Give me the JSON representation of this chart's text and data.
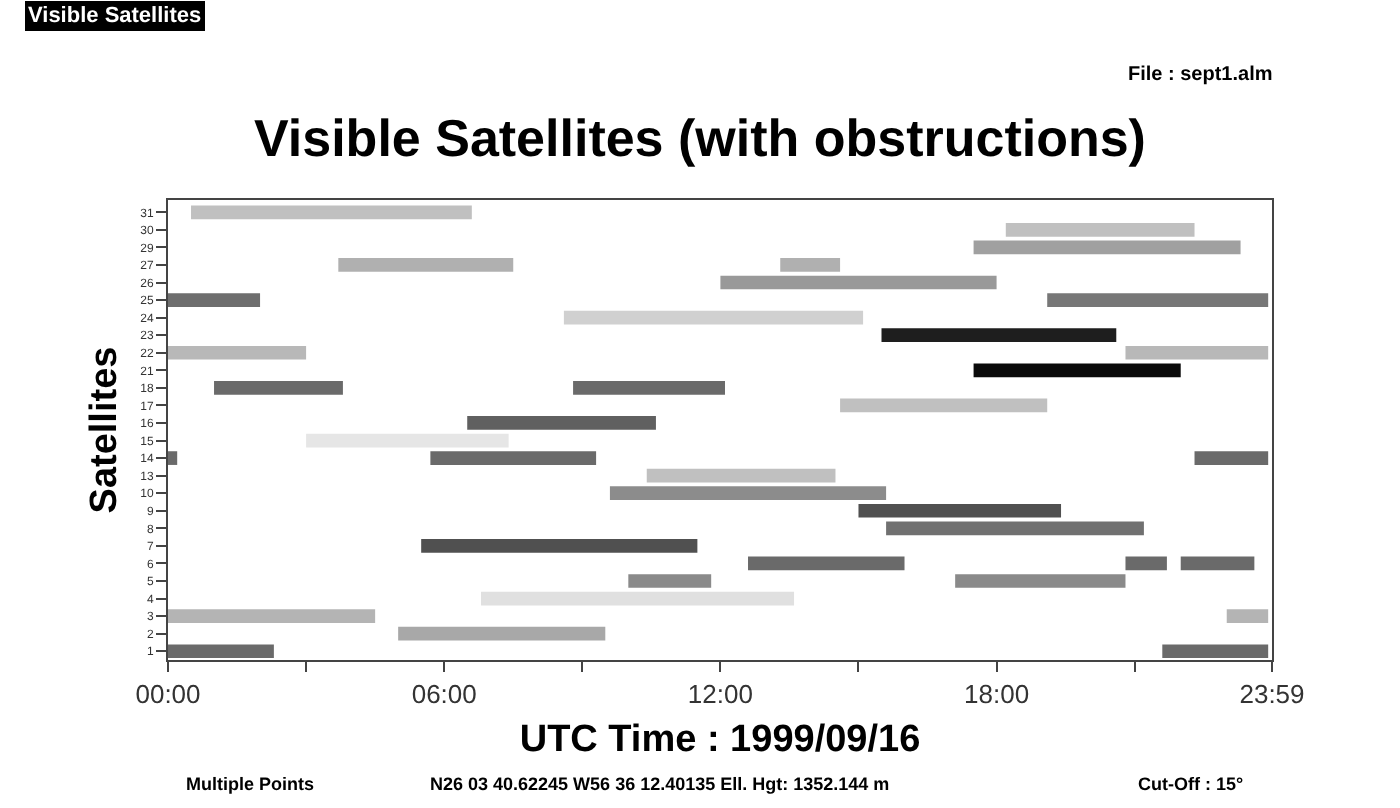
{
  "chart_data": {
    "type": "bar",
    "orientation": "horizontal",
    "title": "Visible Satellites (with obstructions)",
    "xlabel": "UTC Time : 1999/09/16",
    "ylabel": "Satellites",
    "annotations": [
      "Visible Satellites",
      "File : sept1.alm",
      "Multiple Points",
      "N26 03 40.62245 W56 36 12.40135 Ell. Hgt: 1352.144 m",
      "Cut-Off : 15°"
    ],
    "categories": [
      "31",
      "30",
      "29",
      "27",
      "26",
      "25",
      "24",
      "23",
      "22",
      "21",
      "18",
      "17",
      "16",
      "15",
      "14",
      "13",
      "10",
      "9",
      "8",
      "7",
      "6",
      "5",
      "4",
      "3",
      "2",
      "1"
    ],
    "series": [
      {
        "base": [
          0.5,
          18.2,
          17.5,
          3.7,
          12.0,
          0.0,
          8.6,
          15.5,
          0.0,
          17.5,
          1.0,
          14.6,
          6.5,
          3.0,
          0.0,
          10.4,
          9.6,
          15.0,
          15.6,
          5.5,
          12.6,
          10.0,
          6.8,
          0.0,
          5.0,
          0.0
        ],
        "values": [
          6.1,
          4.1,
          5.8,
          3.8,
          6.0,
          2.0,
          6.5,
          5.1,
          3.0,
          4.5,
          2.8,
          4.5,
          4.1,
          4.4,
          0.2,
          4.1,
          6.0,
          4.4,
          5.6,
          6.0,
          3.4,
          1.8,
          6.8,
          4.5,
          4.5,
          2.3
        ],
        "colors": [
          "#c0c0c0",
          "#c0c0c0",
          "#a0a0a0",
          "#b0b0b0",
          "#999999",
          "#6e6e6e",
          "#d0d0d0",
          "#1e1e1e",
          "#b8b8b8",
          "#0a0a0a",
          "#6a6a6a",
          "#c0c0c0",
          "#606060",
          "#e6e6e6",
          "#6a6a6a",
          "#c0c0c0",
          "#8c8c8c",
          "#505050",
          "#707070",
          "#505050",
          "#6a6a6a",
          "#8a8a8a",
          "#e0e0e0",
          "#b4b4b4",
          "#a8a8a8",
          "#6a6a6a"
        ]
      },
      {
        "base": [
          null,
          null,
          null,
          13.3,
          null,
          19.1,
          null,
          null,
          20.8,
          null,
          8.8,
          null,
          null,
          null,
          5.7,
          null,
          null,
          null,
          null,
          null,
          20.8,
          17.1,
          null,
          23.0,
          null,
          21.6
        ],
        "values": [
          null,
          null,
          null,
          1.3,
          null,
          4.8,
          null,
          null,
          3.1,
          null,
          3.3,
          null,
          null,
          null,
          3.6,
          null,
          null,
          null,
          null,
          null,
          0.9,
          3.7,
          null,
          0.9,
          null,
          2.3
        ],
        "colors": [
          "#ffffff",
          "#ffffff",
          "#ffffff",
          "#b0b0b0",
          "#ffffff",
          "#777777",
          "#ffffff",
          "#ffffff",
          "#b8b8b8",
          "#ffffff",
          "#6a6a6a",
          "#ffffff",
          "#ffffff",
          "#ffffff",
          "#6a6a6a",
          "#ffffff",
          "#ffffff",
          "#ffffff",
          "#ffffff",
          "#ffffff",
          "#6a6a6a",
          "#8a8a8a",
          "#ffffff",
          "#b4b4b4",
          "#ffffff",
          "#6a6a6a"
        ]
      },
      {
        "base": [
          null,
          null,
          null,
          null,
          null,
          null,
          null,
          null,
          null,
          null,
          null,
          null,
          null,
          null,
          22.3,
          null,
          null,
          null,
          null,
          null,
          22.0,
          null,
          null,
          null,
          null,
          null
        ],
        "values": [
          null,
          null,
          null,
          null,
          null,
          null,
          null,
          null,
          null,
          null,
          null,
          null,
          null,
          null,
          1.6,
          null,
          null,
          null,
          null,
          null,
          1.6,
          null,
          null,
          null,
          null,
          null
        ],
        "colors": [
          "#ffffff",
          "#ffffff",
          "#ffffff",
          "#ffffff",
          "#ffffff",
          "#ffffff",
          "#ffffff",
          "#ffffff",
          "#ffffff",
          "#ffffff",
          "#ffffff",
          "#ffffff",
          "#ffffff",
          "#ffffff",
          "#6a6a6a",
          "#ffffff",
          "#ffffff",
          "#ffffff",
          "#ffffff",
          "#ffffff",
          "#6a6a6a",
          "#ffffff",
          "#ffffff",
          "#ffffff",
          "#ffffff",
          "#ffffff"
        ]
      }
    ],
    "xlim": [
      0,
      23.983
    ],
    "xticks": [
      {
        "value": 0,
        "label": "00:00"
      },
      {
        "value": 3,
        "label": null
      },
      {
        "value": 6,
        "label": "06:00"
      },
      {
        "value": 9,
        "label": null
      },
      {
        "value": 12,
        "label": "12:00"
      },
      {
        "value": 15,
        "label": null
      },
      {
        "value": 18,
        "label": "18:00"
      },
      {
        "value": 21,
        "label": null
      },
      {
        "value": 23.983,
        "label": "23:59"
      }
    ]
  }
}
